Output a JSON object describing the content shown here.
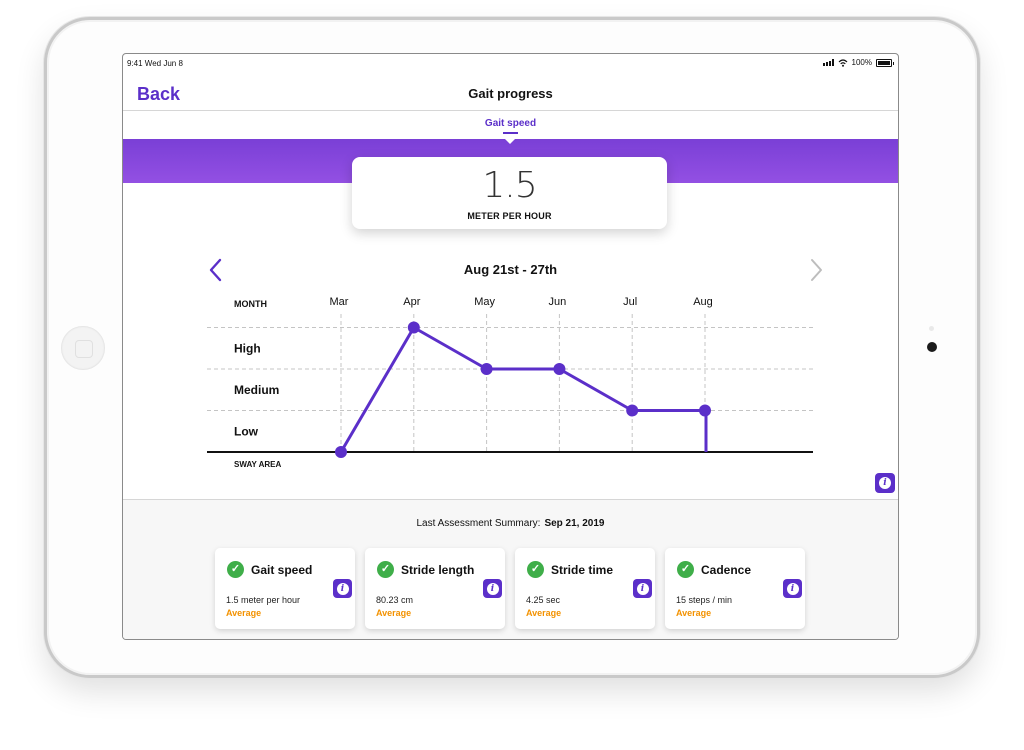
{
  "status_bar": {
    "time": "9:41  Wed Jun 8",
    "battery": "100%"
  },
  "nav": {
    "back_label": "Back",
    "title": "Gait progress"
  },
  "tabs": [
    {
      "label": "Gait speed",
      "active": true
    }
  ],
  "metric": {
    "value": "1.5",
    "unit": "METER PER HOUR"
  },
  "week": {
    "label": "Aug 21st - 27th"
  },
  "chart_data": {
    "type": "line",
    "x_header": "MONTH",
    "y_footer": "SWAY AREA",
    "categories": [
      "Mar",
      "Apr",
      "May",
      "Jun",
      "Jul",
      "Aug"
    ],
    "y_levels": [
      "Low",
      "Medium",
      "High"
    ],
    "values": [
      0,
      3,
      2,
      2,
      1,
      1
    ],
    "ylim": [
      0,
      3
    ],
    "grid": true,
    "line_color": "#5b2fc9"
  },
  "summary": {
    "label": "Last Assessment Summary:",
    "date": "Sep 21, 2019",
    "cards": [
      {
        "title": "Gait speed",
        "value": "1.5 meter per hour",
        "status": "Average"
      },
      {
        "title": "Stride length",
        "value": "80.23 cm",
        "status": "Average"
      },
      {
        "title": "Stride time",
        "value": "4.25 sec",
        "status": "Average"
      },
      {
        "title": "Cadence",
        "value": "15 steps / min",
        "status": "Average"
      }
    ]
  },
  "icons": {
    "info": "info-icon",
    "check": "check-circle-icon",
    "prev": "chevron-left-icon",
    "next": "chevron-right-icon"
  },
  "colors": {
    "accent": "#5b2fc9",
    "banner": "#8a48df",
    "success": "#3fae49",
    "status": "#f39200"
  }
}
